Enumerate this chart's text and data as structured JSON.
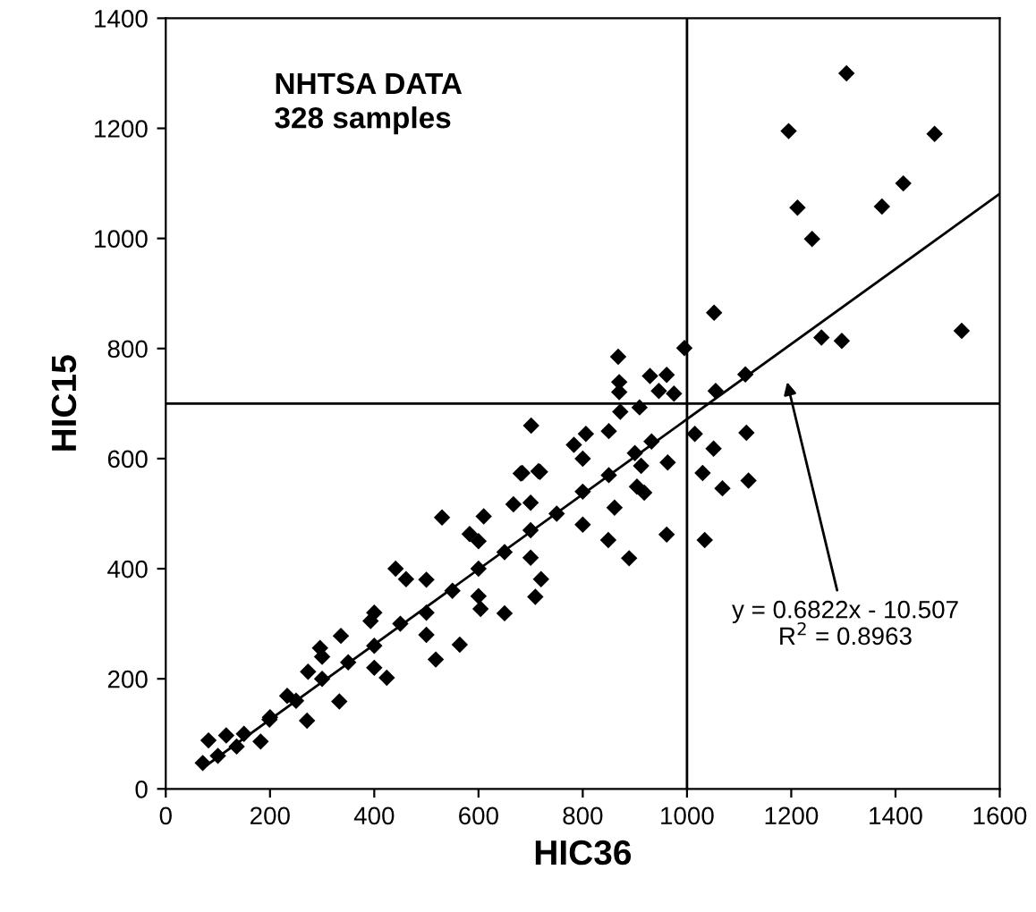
{
  "chart_data": {
    "type": "scatter",
    "xlabel": "HIC36",
    "ylabel": "HIC15",
    "xlim": [
      0,
      1600
    ],
    "ylim": [
      0,
      1400
    ],
    "xticks": [
      0,
      200,
      400,
      600,
      800,
      1000,
      1200,
      1400,
      1600
    ],
    "yticks": [
      0,
      200,
      400,
      600,
      800,
      1000,
      1200,
      1400
    ],
    "grid": false,
    "legend": false,
    "annotations": [
      "NHTSA DATA\n328 samples",
      "y = 0.6822x - 10.507\nR$^{2}$ = 0.8963"
    ],
    "ref_lines": [
      {
        "axis": "x",
        "value": 1000,
        "color": "#000000",
        "line_style": "solid"
      },
      {
        "axis": "y",
        "value": 700,
        "color": "#000000",
        "line_style": "solid"
      }
    ],
    "series": [
      {
        "marker": "diamond",
        "color": "#000000",
        "x": [
          1306,
          1195,
          1475,
          1415,
          1374,
          1212,
          1240,
          1527,
          1258,
          1297,
          1052,
          995,
          1112,
          1055,
          1015,
          1114,
          1051,
          1030,
          1118,
          1068,
          1034,
          868,
          870,
          870,
          929,
          961,
          909,
          946,
          975,
          701,
          806,
          783,
          872,
          932,
          963,
          912,
          904,
          918,
          861,
          849,
          889,
          961,
          684,
          718,
          71,
          82,
          116,
          136,
          182,
          199,
          233,
          271,
          273,
          296,
          333,
          336,
          393,
          424,
          441,
          461,
          530,
          564,
          518,
          650,
          604,
          681,
          715,
          709,
          720,
          583,
          610,
          667,
          100,
          150,
          200,
          250,
          300,
          350,
          400,
          450,
          500,
          550,
          600,
          650,
          700,
          750,
          800,
          850,
          900,
          300,
          400,
          500,
          600,
          700,
          800,
          850,
          400,
          500,
          600,
          700,
          800
        ],
        "values": [
          1300,
          1195,
          1190,
          1100,
          1058,
          1056,
          999,
          832,
          820,
          814,
          865,
          801,
          753,
          723,
          645,
          647,
          618,
          574,
          560,
          546,
          452,
          785,
          739,
          721,
          750,
          752,
          693,
          723,
          718,
          660,
          645,
          625,
          685,
          631,
          593,
          587,
          549,
          538,
          511,
          452,
          419,
          462,
          574,
          576,
          47,
          88,
          97,
          77,
          86,
          126,
          169,
          124,
          213,
          256,
          159,
          278,
          305,
          202,
          400,
          381,
          493,
          262,
          235,
          319,
          327,
          573,
          577,
          349,
          381,
          463,
          495,
          517,
          60,
          100,
          130,
          160,
          200,
          230,
          260,
          300,
          320,
          360,
          400,
          430,
          470,
          500,
          540,
          570,
          610,
          240,
          320,
          380,
          450,
          520,
          600,
          650,
          220,
          280,
          350,
          420,
          480
        ]
      },
      {
        "type": "line",
        "color": "#000000",
        "line_style": "solid",
        "marker": "none",
        "x": [
          80,
          1600
        ],
        "values": [
          44,
          1081
        ]
      }
    ]
  }
}
